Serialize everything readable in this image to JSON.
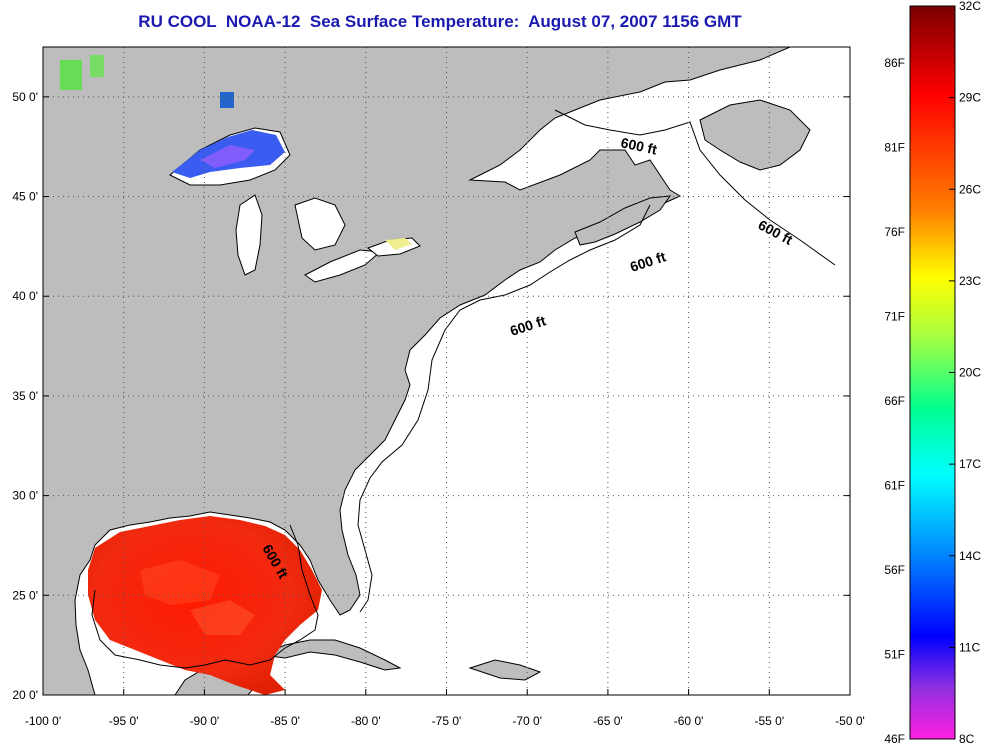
{
  "title": "RU COOL  NOAA-12  Sea Surface Temperature:  August 07, 2007 1156 GMT",
  "map": {
    "lon_range": [
      -100,
      -50
    ],
    "lat_range": [
      20,
      52.5
    ],
    "x_ticks": [
      "-100 0'",
      "-95 0'",
      "-90 0'",
      "-85 0'",
      "-80 0'",
      "-75 0'",
      "-70 0'",
      "-65 0'",
      "-60 0'",
      "-55 0'",
      "-50 0'"
    ],
    "y_ticks": [
      "20 0'",
      "25 0'",
      "30 0'",
      "35 0'",
      "40 0'",
      "45 0'",
      "50 0'"
    ],
    "contour_label": "600 ft",
    "land_color": "#bdbdbd",
    "ocean_color": "#ffffff",
    "grid": "dotted"
  },
  "colorbar": {
    "celsius": [
      "32C",
      "29C",
      "26C",
      "23C",
      "20C",
      "17C",
      "14C",
      "11C",
      "8C"
    ],
    "fahrenheit": [
      "86F",
      "81F",
      "76F",
      "71F",
      "66F",
      "61F",
      "56F",
      "51F",
      "46F"
    ],
    "range_c": [
      8,
      32
    ]
  }
}
